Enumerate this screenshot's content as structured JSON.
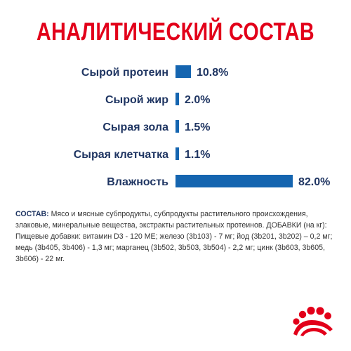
{
  "header": {
    "title": "АНАЛИТИЧЕСКИЙ СОСТАВ"
  },
  "chart_data": {
    "type": "bar",
    "orientation": "horizontal",
    "title": "АНАЛИТИЧЕСКИЙ СОСТАВ",
    "categories": [
      "Сырой протеин",
      "Сырой жир",
      "Сырая зола",
      "Сырая клетчатка",
      "Влажность"
    ],
    "values": [
      10.8,
      2.0,
      1.5,
      1.1,
      82.0
    ],
    "value_labels": [
      "10.8%",
      "2.0%",
      "1.5%",
      "1.1%",
      "82.0%"
    ],
    "unit": "%",
    "xlim": [
      0,
      82.0
    ],
    "grid": false,
    "legend": "none",
    "bar_color": "#1565b0"
  },
  "composition": {
    "label": "СОСТАВ:",
    "text": "Мясо и мясные субпродукты, субпродукты растительного происхождения, злаковые, минеральные вещества, экстракты растительных протеинов. ДОБАВКИ (на кг): Пищевые добавки: витамин D3 - 120 МЕ; железо (3b103) - 7 мг; йод (3b201, 3b202) – 0,2 мг; медь (3b405, 3b406) - 1,3 мг; марганец (3b502, 3b503, 3b504) - 2,2 мг; цинк (3b603, 3b605, 3b606) - 22 мг."
  },
  "brand": {
    "logo_icon": "royal-canin-crown-icon",
    "color": "#e2001a"
  }
}
